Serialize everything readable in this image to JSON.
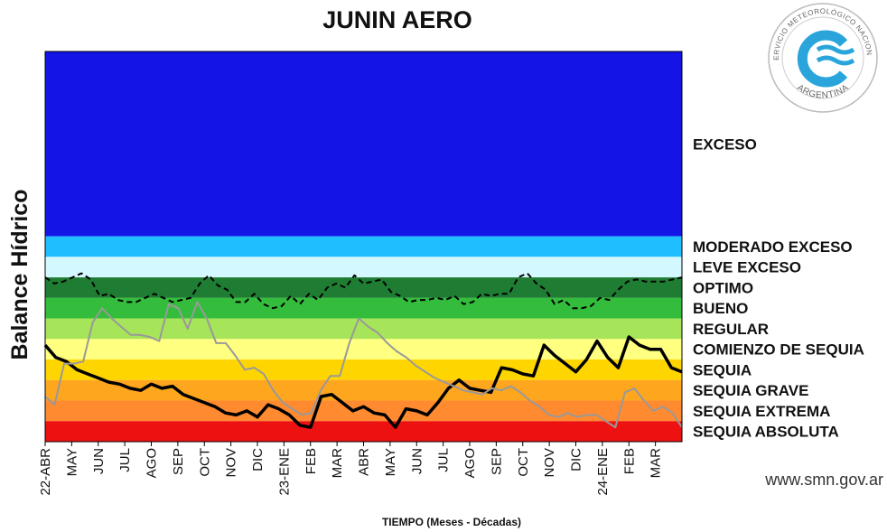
{
  "chart_data": {
    "type": "line",
    "title": "JUNIN AERO",
    "ylabel": "Balance Hídrico",
    "xlabel": "TIEMPO (Meses - Décadas)",
    "x_tick_labels": [
      "22-ABR",
      "MAY",
      "JUN",
      "JUL",
      "AGO",
      "SEP",
      "OCT",
      "NOV",
      "DIC",
      "23-ENE",
      "FEB",
      "MAR",
      "ABR",
      "MAY",
      "JUN",
      "JUL",
      "AGO",
      "SEP",
      "OCT",
      "NOV",
      "DIC",
      "24-ENE",
      "FEB",
      "MAR"
    ],
    "bands": [
      {
        "label": "EXCESO",
        "color": "#1414e6",
        "from": 9,
        "to": 18
      },
      {
        "label": "MODERADO EXCESO",
        "color": "#1ebeff",
        "from": 8,
        "to": 9
      },
      {
        "label": "LEVE EXCESO",
        "color": "#d4f8ff",
        "from": 7,
        "to": 8
      },
      {
        "label": "OPTIMO",
        "color": "#1e7d32",
        "from": 6,
        "to": 7
      },
      {
        "label": "BUENO",
        "color": "#34bd3c",
        "from": 5,
        "to": 6
      },
      {
        "label": "REGULAR",
        "color": "#a6e45a",
        "from": 4,
        "to": 5
      },
      {
        "label": "COMIENZO DE SEQUIA",
        "color": "#ffff80",
        "from": 3,
        "to": 4
      },
      {
        "label": "SEQUIA",
        "color": "#ffd500",
        "from": 2,
        "to": 3
      },
      {
        "label": "SEQUIA GRAVE",
        "color": "#ffa61f",
        "from": 1,
        "to": 2
      },
      {
        "label": "SEQUIA EXTREMA",
        "color": "#ff8a30",
        "from": 0,
        "to": 1
      },
      {
        "label": "SEQUIA ABSOLUTA",
        "color": "#ee1111",
        "from": -1,
        "to": 0
      }
    ],
    "ylim": [
      -1,
      18
    ],
    "xlim": [
      0,
      72
    ],
    "series": [
      {
        "style": "solid",
        "color": "#000000",
        "values": [
          3.7,
          3.1,
          2.9,
          2.5,
          2.3,
          2.1,
          1.9,
          1.8,
          1.6,
          1.5,
          1.8,
          1.6,
          1.7,
          1.3,
          1.1,
          0.9,
          0.7,
          0.4,
          0.3,
          0.5,
          0.2,
          0.8,
          0.6,
          0.3,
          -0.2,
          -0.3,
          1.2,
          1.3,
          0.9,
          0.5,
          0.7,
          0.4,
          0.3,
          -0.3,
          0.6,
          0.5,
          0.3,
          0.9,
          1.6,
          2.0,
          1.6,
          1.5,
          1.4,
          2.6,
          2.5,
          2.3,
          2.2,
          3.7,
          3.2,
          2.8,
          2.4,
          3.0,
          3.9,
          3.1,
          2.6,
          4.1,
          3.7,
          3.5,
          3.5,
          2.6,
          2.4
        ]
      },
      {
        "style": "dashed",
        "color": "#000000",
        "values": [
          7.0,
          6.7,
          6.8,
          7.0,
          7.2,
          6.9,
          6.1,
          6.2,
          5.9,
          5.8,
          5.8,
          6.0,
          6.2,
          6.0,
          5.8,
          5.9,
          6.0,
          6.7,
          7.1,
          6.6,
          6.4,
          5.8,
          5.8,
          6.2,
          5.7,
          5.5,
          5.6,
          6.1,
          5.7,
          6.2,
          5.9,
          6.5,
          6.7,
          6.5,
          7.1,
          6.7,
          6.8,
          6.9,
          6.3,
          6.1,
          5.8,
          5.9,
          5.9,
          6.0,
          5.9,
          6.1,
          5.7,
          5.8,
          6.2,
          6.1,
          6.2,
          6.2,
          7.0,
          7.2,
          6.7,
          6.4,
          5.7,
          5.9,
          5.5,
          5.5,
          5.6,
          6.0,
          5.9,
          6.4,
          6.8,
          6.9,
          6.8,
          6.8,
          6.8,
          6.9,
          7.0
        ]
      },
      {
        "style": "solid",
        "color": "#999999",
        "values": [
          1.2,
          0.8,
          2.8,
          2.8,
          2.9,
          4.8,
          5.5,
          5.0,
          4.6,
          4.2,
          4.2,
          4.1,
          3.9,
          5.7,
          5.5,
          4.5,
          5.8,
          5.0,
          3.8,
          3.8,
          3.2,
          2.5,
          2.6,
          2.3,
          1.5,
          0.9,
          0.6,
          0.3,
          0.4,
          1.5,
          2.2,
          2.2,
          3.8,
          5.0,
          4.6,
          4.3,
          3.8,
          3.4,
          3.1,
          2.7,
          2.4,
          2.1,
          1.9,
          1.7,
          1.5,
          1.4,
          1.3,
          1.6,
          1.5,
          1.7,
          1.4,
          1.0,
          0.7,
          0.3,
          0.2,
          0.4,
          0.2,
          0.3,
          0.3,
          0.0,
          -0.3,
          1.4,
          1.6,
          1.0,
          0.5,
          0.7,
          0.4,
          -0.3
        ]
      }
    ],
    "grid": false,
    "legend": "band labels on the right"
  },
  "footer": {
    "url": "www.smn.gov.ar"
  },
  "logo": {
    "text_top": "SERVICIO METEOROLÓGICO NACIONAL",
    "text_bottom": "ARGENTINA"
  },
  "colors": {
    "seal_blue": "#2aa5dc",
    "seal_orange": "#f39c12"
  }
}
